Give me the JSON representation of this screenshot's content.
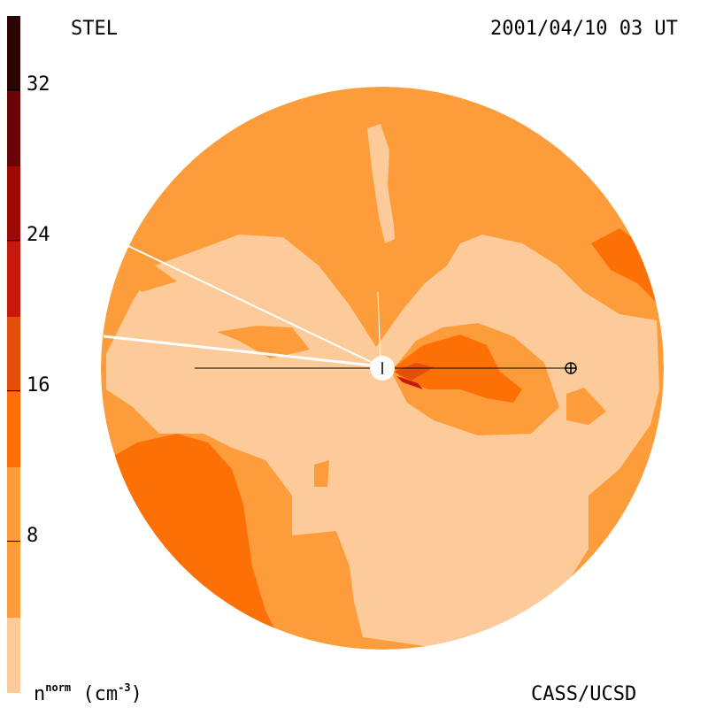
{
  "header": {
    "left_label": "STEL",
    "right_label": "2001/04/10 03 UT"
  },
  "footer": {
    "unit_label_base": "n",
    "unit_label_sup": "norm",
    "unit_label_units": "(cm",
    "unit_label_exp": "-3",
    "unit_label_close": ")",
    "credit": "CASS/UCSD"
  },
  "colorbar": {
    "ticks": [
      "32",
      "24",
      "16",
      "8"
    ],
    "colors": [
      "#fdcb99",
      "#fc9c3a",
      "#fd7006",
      "#e34f0a",
      "#c51a0b",
      "#9d0a06",
      "#6a0406",
      "#2a0504"
    ]
  },
  "map": {
    "colors": {
      "light": "#fdcb99",
      "base": "#fc9c3a",
      "mid": "#fd7006",
      "dark": "#e34f0a",
      "deep": "#c51a0b"
    }
  }
}
